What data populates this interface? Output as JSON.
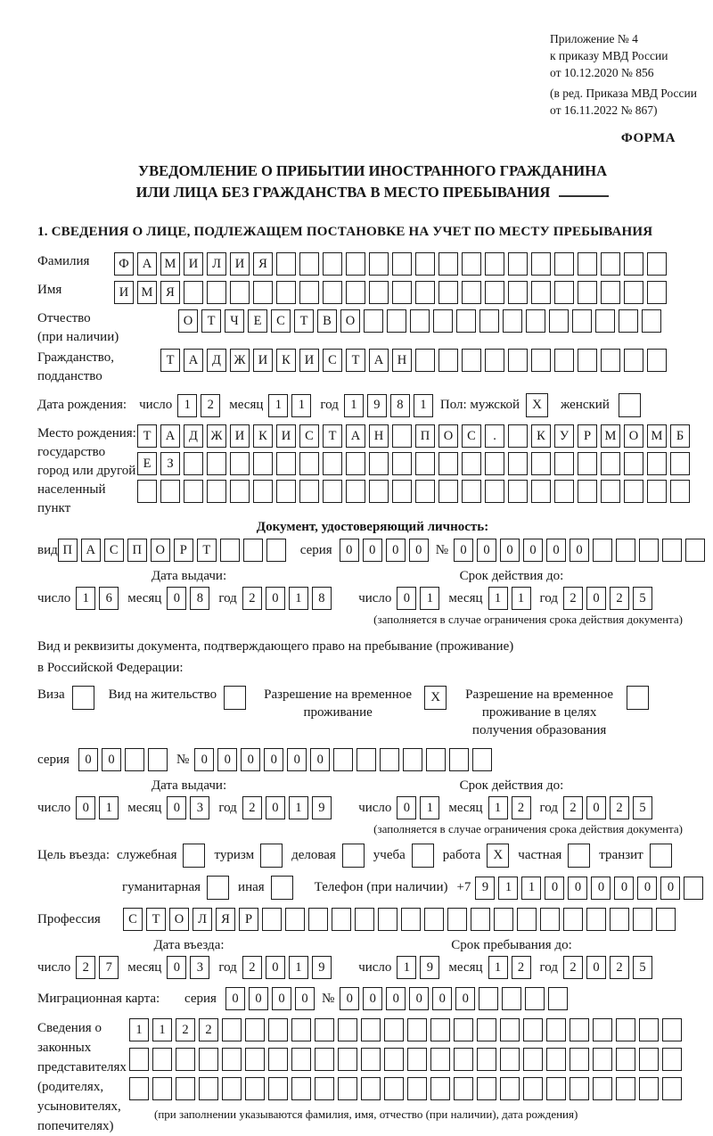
{
  "header": {
    "lines": [
      "Приложение № 4",
      "к приказу МВД России",
      "от 10.12.2020 № 856"
    ],
    "lines2": [
      "(в ред. Приказа МВД России",
      "от 16.11.2022 № 867)"
    ],
    "forma": "ФОРМА"
  },
  "title": {
    "line1": "УВЕДОМЛЕНИЕ О ПРИБЫТИИ ИНОСТРАННОГО ГРАЖДАНИНА",
    "line2": "ИЛИ ЛИЦА БЕЗ ГРАЖДАНСТВА В МЕСТО ПРЕБЫВАНИЯ"
  },
  "date_labels": {
    "num": "число",
    "month": "месяц",
    "year": "год"
  },
  "section1": {
    "heading": "1. СВЕДЕНИЯ О ЛИЦЕ, ПОДЛЕЖАЩЕМ ПОСТАНОВКЕ НА УЧЕТ ПО МЕСТУ ПРЕБЫВАНИЯ",
    "surname": {
      "label": "Фамилия",
      "text": "ФАМИЛИЯ",
      "count": 24
    },
    "name": {
      "label": "Имя",
      "text": "ИМЯ",
      "count": 24
    },
    "patronymic": {
      "label": "Отчество",
      "label2": "(при наличии)",
      "text": "ОТЧЕСТВО",
      "count": 21
    },
    "citizenship": {
      "label": "Гражданство,",
      "label2": "подданство",
      "text": "ТАДЖИКИСТАН",
      "count": 22
    },
    "birth_date": {
      "label": "Дата рождения:",
      "day": {
        "text": "12",
        "count": 2
      },
      "month": {
        "text": "11",
        "count": 2
      },
      "year": {
        "text": "1981",
        "count": 4
      }
    },
    "sex": {
      "label": "Пол: мужской",
      "male_mark": "X",
      "female_label": "женский",
      "female_mark": ""
    },
    "birth_place": {
      "label1": "Место рождения:",
      "label2": "государство",
      "label3": "город или другой",
      "label4": "населенный пункт",
      "rows": [
        {
          "text": "ТАДЖИКИСТАН ПОС. КУРМОМБ",
          "count": 24
        },
        {
          "text": "ЕЗ",
          "count": 24
        },
        {
          "text": "",
          "count": 24
        }
      ]
    }
  },
  "identity_doc": {
    "heading": "Документ, удостоверяющий личность:",
    "kind": {
      "label": "вид",
      "text": "ПАСПОРТ",
      "count": 10
    },
    "series": {
      "label": "серия",
      "text": "0000",
      "count": 4
    },
    "number": {
      "label": "№",
      "text": "000000",
      "count": 11
    },
    "issue": {
      "heading": "Дата выдачи:",
      "day": {
        "text": "16",
        "count": 2
      },
      "month": {
        "text": "08",
        "count": 2
      },
      "year": {
        "text": "2018",
        "count": 4
      }
    },
    "valid": {
      "heading": "Срок действия до:",
      "day": {
        "text": "01",
        "count": 2
      },
      "month": {
        "text": "11",
        "count": 2
      },
      "year": {
        "text": "2025",
        "count": 4
      }
    },
    "note": "(заполняется в случае ограничения срока действия документа)"
  },
  "residence_doc": {
    "intro1": "Вид и реквизиты документа, подтверждающего право на пребывание (проживание)",
    "intro2": "в Российской Федерации:",
    "options": [
      {
        "label": "Виза",
        "checked": ""
      },
      {
        "label": "Вид на жительство",
        "checked": ""
      },
      {
        "label": "Разрешение на временное проживание",
        "checked": "X"
      },
      {
        "label": "Разрешение на временное проживание в целях получения образования",
        "checked": ""
      }
    ],
    "series": {
      "label": "серия",
      "text": "00",
      "count": 4
    },
    "number": {
      "label": "№",
      "text": "000000",
      "count": 13
    },
    "issue": {
      "heading": "Дата выдачи:",
      "day": {
        "text": "01",
        "count": 2
      },
      "month": {
        "text": "03",
        "count": 2
      },
      "year": {
        "text": "2019",
        "count": 4
      }
    },
    "valid": {
      "heading": "Срок действия до:",
      "day": {
        "text": "01",
        "count": 2
      },
      "month": {
        "text": "12",
        "count": 2
      },
      "year": {
        "text": "2025",
        "count": 4
      }
    },
    "note": "(заполняется в случае ограничения срока действия документа)"
  },
  "visit": {
    "purpose_label": "Цель въезда:",
    "purposes": [
      {
        "label": "служебная",
        "checked": ""
      },
      {
        "label": "туризм",
        "checked": ""
      },
      {
        "label": "деловая",
        "checked": ""
      },
      {
        "label": "учеба",
        "checked": ""
      },
      {
        "label": "работа",
        "checked": "X"
      },
      {
        "label": "частная",
        "checked": ""
      },
      {
        "label": "транзит",
        "checked": ""
      }
    ],
    "purposes2": [
      {
        "label": "гуманитарная",
        "checked": ""
      },
      {
        "label": "иная",
        "checked": ""
      }
    ],
    "phone": {
      "label": "Телефон (при наличии)",
      "prefix": "+7",
      "text": "911000000",
      "count": 10
    },
    "profession": {
      "label": "Профессия",
      "text": "СТОЛЯР",
      "count": 24
    },
    "entry": {
      "heading": "Дата въезда:",
      "day": {
        "text": "27",
        "count": 2
      },
      "month": {
        "text": "03",
        "count": 2
      },
      "year": {
        "text": "2019",
        "count": 4
      }
    },
    "stay": {
      "heading": "Срок пребывания до:",
      "day": {
        "text": "19",
        "count": 2
      },
      "month": {
        "text": "12",
        "count": 2
      },
      "year": {
        "text": "2025",
        "count": 4
      }
    },
    "migration_card": {
      "label": "Миграционная карта:",
      "series": {
        "label": "серия",
        "text": "0000",
        "count": 4
      },
      "number": {
        "label": "№",
        "text": "000000",
        "count": 10
      }
    }
  },
  "representatives": {
    "label1": "Сведения о",
    "label2": "законных",
    "label3": "представителях",
    "label4": "(родителях,",
    "label5": "усыновителях,",
    "label6": "попечителях)",
    "rows": [
      {
        "text": "1122",
        "count": 24
      },
      {
        "text": "",
        "count": 24
      },
      {
        "text": "",
        "count": 24
      }
    ],
    "note": "(при заполнении указываются фамилия, имя, отчество (при наличии), дата рождения)"
  }
}
